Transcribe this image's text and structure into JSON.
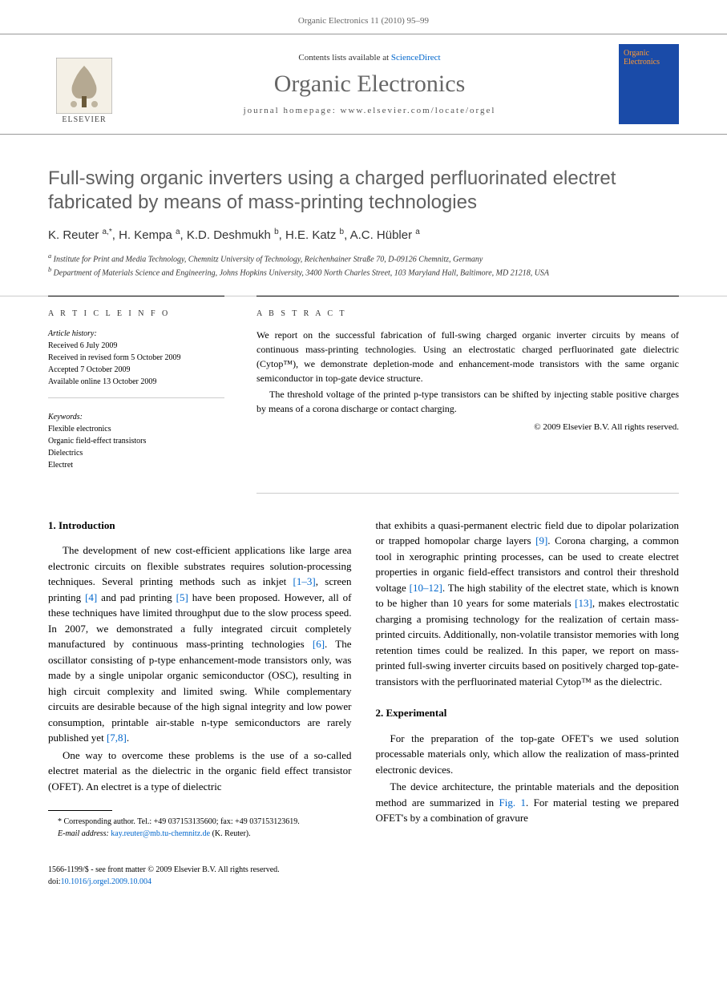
{
  "header": {
    "running_head": "Organic Electronics 11 (2010) 95–99"
  },
  "masthead": {
    "publisher": "ELSEVIER",
    "contents_prefix": "Contents lists available at ",
    "contents_link": "ScienceDirect",
    "journal_name": "Organic Electronics",
    "homepage_label": "journal homepage: www.elsevier.com/locate/orgel",
    "cover_title": "Organic Electronics"
  },
  "article": {
    "title": "Full-swing organic inverters using a charged perfluorinated electret fabricated by means of mass-printing technologies",
    "authors_html": "K. Reuter <sup>a,*</sup>, H. Kempa <sup>a</sup>, K.D. Deshmukh <sup>b</sup>, H.E. Katz <sup>b</sup>, A.C. Hübler <sup>a</sup>",
    "affiliations": [
      "a Institute for Print and Media Technology, Chemnitz University of Technology, Reichenhainer Straße 70, D-09126 Chemnitz, Germany",
      "b Department of Materials Science and Engineering, Johns Hopkins University, 3400 North Charles Street, 103 Maryland Hall, Baltimore, MD 21218, USA"
    ]
  },
  "info": {
    "heading": "A R T I C L E   I N F O",
    "history_label": "Article history:",
    "history": [
      "Received 6 July 2009",
      "Received in revised form 5 October 2009",
      "Accepted 7 October 2009",
      "Available online 13 October 2009"
    ],
    "keywords_label": "Keywords:",
    "keywords": [
      "Flexible electronics",
      "Organic field-effect transistors",
      "Dielectrics",
      "Electret"
    ]
  },
  "abstract": {
    "heading": "A B S T R A C T",
    "paragraphs": [
      "We report on the successful fabrication of full-swing charged organic inverter circuits by means of continuous mass-printing technologies. Using an electrostatic charged perfluorinated gate dielectric (Cytop™), we demonstrate depletion-mode and enhancement-mode transistors with the same organic semiconductor in top-gate device structure.",
      "The threshold voltage of the printed p-type transistors can be shifted by injecting stable positive charges by means of a corona discharge or contact charging."
    ],
    "copyright": "© 2009 Elsevier B.V. All rights reserved."
  },
  "sections": {
    "intro_heading": "1. Introduction",
    "exp_heading": "2. Experimental",
    "col1_p1_a": "The development of new cost-efficient applications like large area electronic circuits on flexible substrates requires solution-processing techniques. Several printing methods such as inkjet ",
    "ref_1_3": "[1–3]",
    "col1_p1_b": ", screen printing ",
    "ref_4": "[4]",
    "col1_p1_c": " and pad printing ",
    "ref_5": "[5]",
    "col1_p1_d": " have been proposed. However, all of these techniques have limited throughput due to the slow process speed. In 2007, we demonstrated a fully integrated circuit completely manufactured by continuous mass-printing technologies ",
    "ref_6": "[6]",
    "col1_p1_e": ". The oscillator consisting of p-type enhancement-mode transistors only, was made by a single unipolar organic semiconductor (OSC), resulting in high circuit complexity and limited swing. While complementary circuits are desirable because of the high signal integrity and low power consumption, printable air-stable n-type semiconductors are rarely published yet ",
    "ref_7_8": "[7,8]",
    "col1_p1_f": ".",
    "col1_p2": "One way to overcome these problems is the use of a so-called electret material as the dielectric in the organic field effect transistor (OFET). An electret is a type of dielectric",
    "col2_p1_a": "that exhibits a quasi-permanent electric field due to dipolar polarization or trapped homopolar charge layers ",
    "ref_9": "[9]",
    "col2_p1_b": ". Corona charging, a common tool in xerographic printing processes, can be used to create electret properties in organic field-effect transistors and control their threshold voltage ",
    "ref_10_12": "[10–12]",
    "col2_p1_c": ". The high stability of the electret state, which is known to be higher than 10 years for some materials ",
    "ref_13": "[13]",
    "col2_p1_d": ", makes electrostatic charging a promising technology for the realization of certain mass-printed circuits. Additionally, non-volatile transistor memories with long retention times could be realized. In this paper, we report on mass-printed full-swing inverter circuits based on positively charged top-gate-transistors with the perfluorinated material Cytop™ as the dielectric.",
    "col2_p2": "For the preparation of the top-gate OFET's we used solution processable materials only, which allow the realization of mass-printed electronic devices.",
    "col2_p3_a": "The device architecture, the printable materials and the deposition method are summarized in ",
    "fig_1": "Fig. 1",
    "col2_p3_b": ". For material testing we prepared OFET's by a combination of gravure"
  },
  "footnote": {
    "corr": "* Corresponding author. Tel.: +49 037153135600; fax: +49 037153123619.",
    "email_label": "E-mail address:",
    "email": "kay.reuter@mb.tu-chemnitz.de",
    "email_suffix": " (K. Reuter)."
  },
  "footer": {
    "line1": "1566-1199/$ - see front matter © 2009 Elsevier B.V. All rights reserved.",
    "doi_label": "doi:",
    "doi": "10.1016/j.orgel.2009.10.004"
  },
  "colors": {
    "link": "#0066cc",
    "title_gray": "#606060",
    "journal_gray": "#666666",
    "cover_bg": "#1a4ba8",
    "cover_accent": "#ff9933"
  }
}
